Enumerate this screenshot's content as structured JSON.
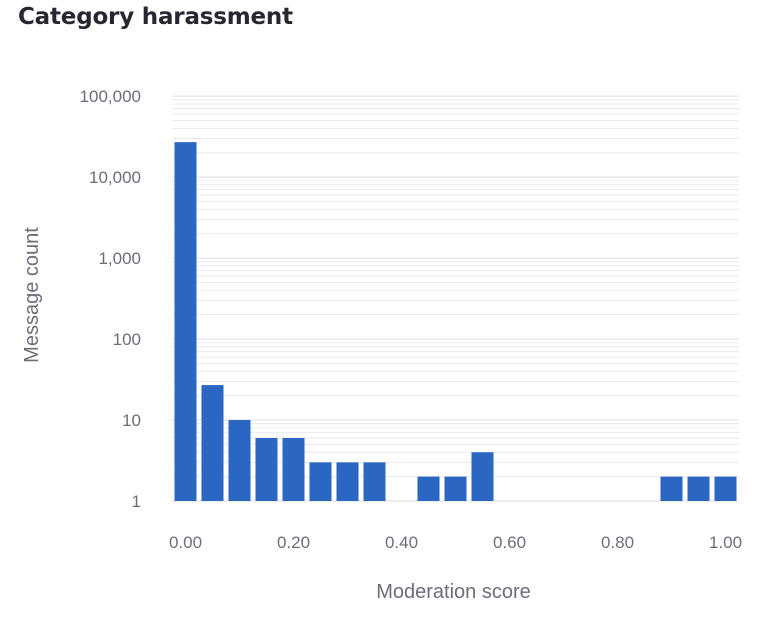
{
  "chart_data": {
    "type": "bar",
    "title": "Category harassment",
    "xlabel": "Moderation score",
    "ylabel": "Message count",
    "y_scale": "log",
    "ylim": [
      1,
      100000
    ],
    "xlim": [
      -0.025,
      1.025
    ],
    "bin_width": 0.05,
    "y_ticks": [
      1,
      10,
      100,
      1000,
      10000,
      100000
    ],
    "y_tick_labels": [
      "1",
      "10",
      "100",
      "1,000",
      "10,000",
      "100,000"
    ],
    "x_ticks": [
      0,
      0.2,
      0.4,
      0.6,
      0.8,
      1.0
    ],
    "x_tick_labels": [
      "0.00",
      "0.20",
      "0.40",
      "0.60",
      "0.80",
      "1.00"
    ],
    "grid": true,
    "bar_color": "#2a66c2",
    "bars": [
      {
        "x": 0.0,
        "count": 27000
      },
      {
        "x": 0.05,
        "count": 27
      },
      {
        "x": 0.1,
        "count": 10
      },
      {
        "x": 0.15,
        "count": 6
      },
      {
        "x": 0.2,
        "count": 6
      },
      {
        "x": 0.25,
        "count": 3
      },
      {
        "x": 0.3,
        "count": 3
      },
      {
        "x": 0.35,
        "count": 3
      },
      {
        "x": 0.45,
        "count": 2
      },
      {
        "x": 0.5,
        "count": 2
      },
      {
        "x": 0.55,
        "count": 4
      },
      {
        "x": 0.9,
        "count": 2
      },
      {
        "x": 0.95,
        "count": 2
      },
      {
        "x": 1.0,
        "count": 2
      }
    ]
  }
}
